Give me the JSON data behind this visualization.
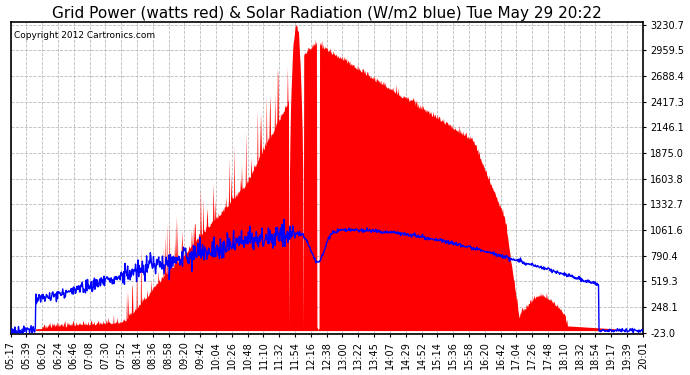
{
  "title": "Grid Power (watts red) & Solar Radiation (W/m2 blue) Tue May 29 20:22",
  "copyright": "Copyright 2012 Cartronics.com",
  "ymin": -23.0,
  "ymax": 3230.7,
  "yticks": [
    3230.7,
    2959.5,
    2688.4,
    2417.3,
    2146.1,
    1875.0,
    1603.8,
    1332.7,
    1061.6,
    790.4,
    519.3,
    248.1,
    -23.0
  ],
  "xtick_labels": [
    "05:17",
    "05:39",
    "06:02",
    "06:24",
    "06:46",
    "07:08",
    "07:30",
    "07:52",
    "08:14",
    "08:36",
    "08:58",
    "09:20",
    "09:42",
    "10:04",
    "10:26",
    "10:48",
    "11:10",
    "11:32",
    "11:54",
    "12:16",
    "12:38",
    "13:00",
    "13:22",
    "13:45",
    "14:07",
    "14:29",
    "14:52",
    "15:14",
    "15:36",
    "15:58",
    "16:20",
    "16:42",
    "17:04",
    "17:26",
    "17:48",
    "18:10",
    "18:32",
    "18:54",
    "19:17",
    "19:39",
    "20:01"
  ],
  "bg_color": "#ffffff",
  "plot_bg_color": "#ffffff",
  "grid_color": "#bbbbbb",
  "red_color": "#ff0000",
  "blue_color": "#0000ff",
  "title_fontsize": 11,
  "tick_fontsize": 7
}
